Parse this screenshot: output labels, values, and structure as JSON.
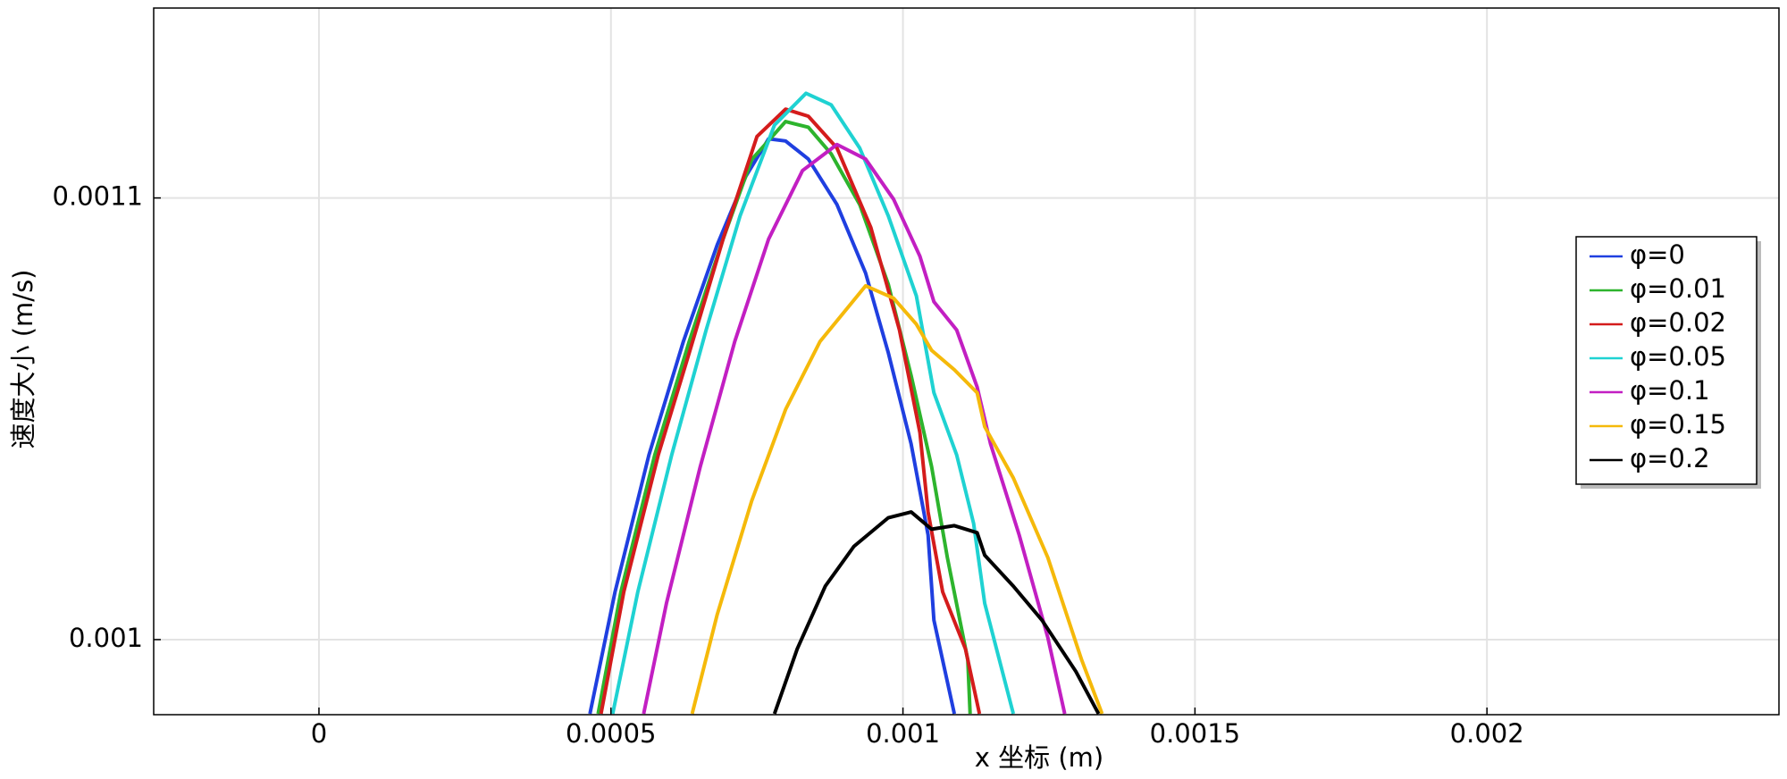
{
  "chart_data": {
    "type": "line",
    "xlabel": "x 坐标 (m)",
    "ylabel": "速度大小 (m/s)",
    "xlim": [
      -0.000283,
      0.0025
    ],
    "ylim": [
      0.000983,
      0.001143
    ],
    "xticks": [
      0,
      0.0005,
      0.001,
      0.0015,
      0.002
    ],
    "yticks": [
      0.001,
      0.0011
    ],
    "grid": true,
    "legend": "right",
    "series": [
      {
        "name": "φ=0",
        "color": "#1f3fe0",
        "x": [
          0.000464,
          0.000507,
          0.000565,
          0.000624,
          0.000682,
          0.000731,
          0.00077,
          0.000799,
          0.000838,
          0.000887,
          0.000936,
          0.000975,
          0.001014,
          0.001043,
          0.001053,
          0.001088
        ],
        "values": [
          0.0009832,
          0.0010108,
          0.0010418,
          0.0010675,
          0.0010894,
          0.0011049,
          0.0011134,
          0.0011129,
          0.0011088,
          0.0010985,
          0.001083,
          0.0010649,
          0.0010443,
          0.0010237,
          0.0010044,
          0.0009832
        ]
      },
      {
        "name": "φ=0.01",
        "color": "#2db42d",
        "x": [
          0.000478,
          0.000517,
          0.000575,
          0.000634,
          0.000692,
          0.000741,
          0.000799,
          0.000838,
          0.000877,
          0.000926,
          0.000975,
          0.001014,
          0.001049,
          0.001076,
          0.001111,
          0.001115
        ],
        "values": [
          0.0009832,
          0.0010108,
          0.0010418,
          0.0010675,
          0.0010907,
          0.0011087,
          0.0011173,
          0.001116,
          0.00111,
          0.0010985,
          0.0010804,
          0.0010598,
          0.0010392,
          0.0010186,
          0.0009954,
          0.0009832
        ]
      },
      {
        "name": "φ=0.02",
        "color": "#d41c1c",
        "x": [
          0.000483,
          0.000522,
          0.000581,
          0.000634,
          0.000692,
          0.00075,
          0.000799,
          0.000838,
          0.000887,
          0.000945,
          0.000994,
          0.001029,
          0.001043,
          0.001068,
          0.001107,
          0.001131
        ],
        "values": [
          0.0009832,
          0.0010108,
          0.0010418,
          0.0010649,
          0.0010907,
          0.0011139,
          0.0011201,
          0.0011185,
          0.0011113,
          0.0010933,
          0.0010701,
          0.0010469,
          0.0010289,
          0.0010108,
          0.0009979,
          0.0009832
        ]
      },
      {
        "name": "φ=0.05",
        "color": "#1fd2d2",
        "x": [
          0.000503,
          0.000546,
          0.000604,
          0.000663,
          0.000721,
          0.00078,
          0.000834,
          0.000877,
          0.000926,
          0.000975,
          0.001023,
          0.001053,
          0.001092,
          0.001121,
          0.00114,
          0.001189
        ],
        "values": [
          0.0009832,
          0.0010108,
          0.0010418,
          0.0010701,
          0.0010959,
          0.0011165,
          0.0011237,
          0.0011211,
          0.0011113,
          0.0010959,
          0.0010778,
          0.0010559,
          0.0010418,
          0.0010263,
          0.0010082,
          0.0009832
        ]
      },
      {
        "name": "φ=0.1",
        "color": "#c21fc2",
        "x": [
          0.000556,
          0.000595,
          0.000653,
          0.000712,
          0.00077,
          0.000828,
          0.000887,
          0.000936,
          0.000984,
          0.001029,
          0.001053,
          0.001092,
          0.001127,
          0.00115,
          0.001199,
          0.001248,
          0.001277
        ],
        "values": [
          0.0009832,
          0.0010082,
          0.0010392,
          0.0010675,
          0.0010907,
          0.0011062,
          0.0011121,
          0.0011088,
          0.0010997,
          0.0010868,
          0.0010765,
          0.0010701,
          0.0010572,
          0.0010443,
          0.0010237,
          0.0010005,
          0.0009832
        ]
      },
      {
        "name": "φ=0.15",
        "color": "#f5b90a",
        "x": [
          0.000639,
          0.000682,
          0.000741,
          0.000799,
          0.000858,
          0.000936,
          0.000984,
          0.001023,
          0.001049,
          0.001088,
          0.001127,
          0.00114,
          0.001189,
          0.001248,
          0.001306,
          0.001341
        ],
        "values": [
          0.0009832,
          0.0010057,
          0.0010314,
          0.0010521,
          0.0010675,
          0.0010801,
          0.0010773,
          0.0010714,
          0.0010655,
          0.0010611,
          0.0010559,
          0.0010482,
          0.0010366,
          0.0010186,
          0.0009954,
          0.0009832
        ]
      },
      {
        "name": "φ=0.2",
        "color": "#000000",
        "x": [
          0.00078,
          0.000819,
          0.000867,
          0.000916,
          0.000975,
          0.001014,
          0.001049,
          0.001088,
          0.001127,
          0.00114,
          0.001189,
          0.001238,
          0.001296,
          0.001335
        ],
        "values": [
          0.0009832,
          0.0009979,
          0.0010121,
          0.0010211,
          0.0010276,
          0.0010289,
          0.001025,
          0.0010258,
          0.0010242,
          0.0010191,
          0.0010121,
          0.0010044,
          0.0009928,
          0.0009832
        ]
      }
    ]
  }
}
